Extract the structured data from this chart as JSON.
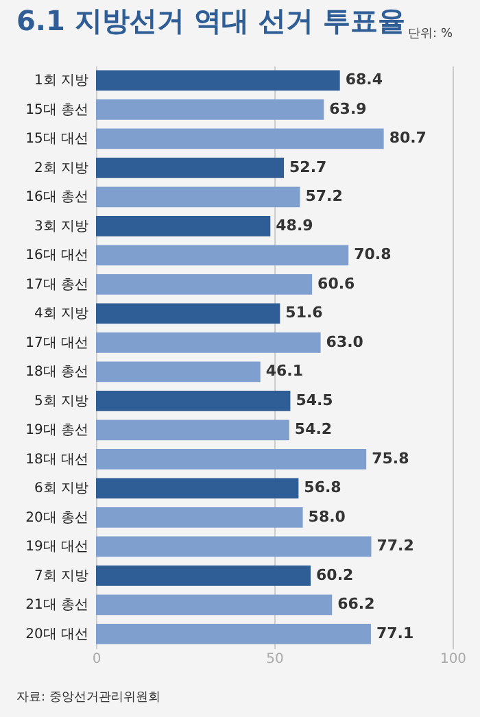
{
  "chart_data": {
    "type": "bar",
    "orientation": "horizontal",
    "title": "6.1 지방선거 역대 선거 투표율",
    "annotations": [
      "단위: %",
      "자료: 중앙선거관리위원회"
    ],
    "categories": [
      "1회 지방",
      "15대 총선",
      "15대 대선",
      "2회 지방",
      "16대 총선",
      "3회 지방",
      "16대 대선",
      "17대 총선",
      "4회 지방",
      "17대 대선",
      "18대 총선",
      "5회 지방",
      "19대 총선",
      "18대 대선",
      "6회 지방",
      "20대 총선",
      "19대 대선",
      "7회 지방",
      "21대 총선",
      "20대 대선"
    ],
    "values": [
      68.4,
      63.9,
      80.7,
      52.7,
      57.2,
      48.9,
      70.8,
      60.6,
      51.6,
      63.0,
      46.1,
      54.5,
      54.2,
      75.8,
      56.8,
      58.0,
      77.2,
      60.2,
      66.2,
      77.1
    ],
    "value_labels": [
      "68.4",
      "63.9",
      "80.7",
      "52.7",
      "57.2",
      "48.9",
      "70.8",
      "60.6",
      "51.6",
      "63.0",
      "46.1",
      "54.5",
      "54.2",
      "75.8",
      "56.8",
      "58.0",
      "77.2",
      "60.2",
      "66.2",
      "77.1"
    ],
    "colors": [
      "#2f5d96",
      "#7f9fcf",
      "#7f9fcf",
      "#2f5d96",
      "#7f9fcf",
      "#2f5d96",
      "#7f9fcf",
      "#7f9fcf",
      "#2f5d96",
      "#7f9fcf",
      "#7f9fcf",
      "#2f5d96",
      "#7f9fcf",
      "#7f9fcf",
      "#2f5d96",
      "#7f9fcf",
      "#7f9fcf",
      "#2f5d96",
      "#7f9fcf",
      "#7f9fcf"
    ],
    "xlim": [
      0,
      100
    ],
    "xticks": [
      0,
      50,
      100
    ],
    "grid": "x"
  }
}
